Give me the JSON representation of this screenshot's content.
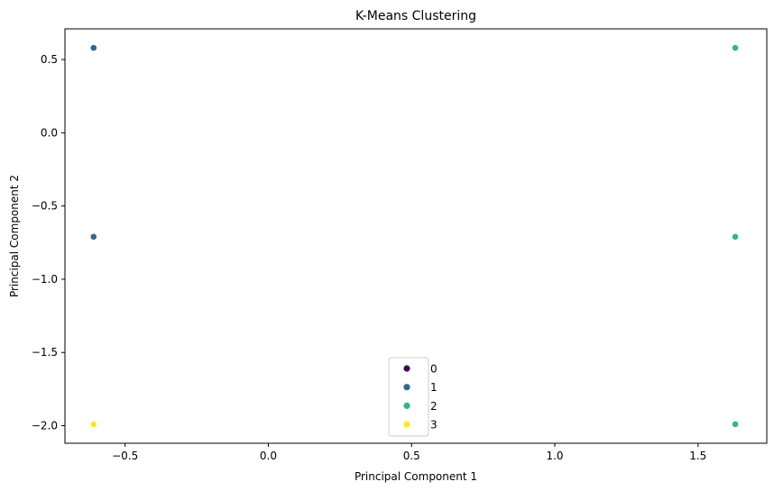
{
  "chart_data": {
    "type": "scatter",
    "title": "K-Means Clustering",
    "xlabel": "Principal Component 1",
    "ylabel": "Principal Component 2",
    "xlim": [
      -0.71,
      1.74
    ],
    "ylim": [
      -2.12,
      0.71
    ],
    "x_ticks": [
      -0.5,
      0.0,
      0.5,
      1.0,
      1.5
    ],
    "x_tick_labels": [
      "−0.5",
      "0.0",
      "0.5",
      "1.0",
      "1.5"
    ],
    "y_ticks": [
      0.5,
      0.0,
      -0.5,
      -1.0,
      -1.5,
      -2.0
    ],
    "y_tick_labels": [
      "0.5",
      "0.0",
      "−0.5",
      "−1.0",
      "−1.5",
      "−2.0"
    ],
    "grid": false,
    "legend_position": "lower center",
    "series": [
      {
        "name": "0",
        "color": "#440154",
        "points": []
      },
      {
        "name": "1",
        "color": "#31688e",
        "points": [
          [
            -0.61,
            0.58
          ],
          [
            -0.61,
            -0.71
          ]
        ]
      },
      {
        "name": "2",
        "color": "#35b779",
        "points": [
          [
            1.63,
            0.58
          ],
          [
            1.63,
            -0.71
          ],
          [
            1.63,
            -1.99
          ]
        ]
      },
      {
        "name": "3",
        "color": "#fde725",
        "points": [
          [
            -0.61,
            -1.99
          ]
        ]
      }
    ]
  }
}
